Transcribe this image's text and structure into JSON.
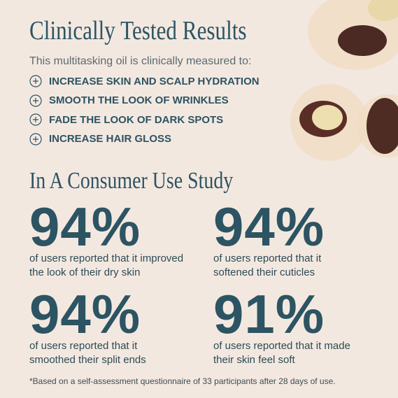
{
  "header": {
    "title": "Clinically Tested Results",
    "subtitle": "This multitasking oil is clinically measured to:"
  },
  "benefits": [
    "INCREASE SKIN AND SCALP HYDRATION",
    "SMOOTH THE LOOK OF WRINKLES",
    "FADE THE LOOK OF DARK SPOTS",
    "INCREASE HAIR GLOSS"
  ],
  "study": {
    "title": "In A Consumer Use Study",
    "stats": [
      {
        "figure": "94%",
        "lines": [
          "of users reported that it improved",
          "the look of their dry skin"
        ]
      },
      {
        "figure": "94%",
        "lines": [
          "of users reported that it",
          "softened their cuticles"
        ]
      },
      {
        "figure": "94%",
        "lines": [
          "of users reported that it",
          "smoothed their split ends"
        ]
      },
      {
        "figure": "91%",
        "lines": [
          "of users reported that it made",
          "their skin feel soft"
        ]
      }
    ]
  },
  "footnote": "*Based on a self-assessment questionnaire of 33 participants after 28 days of use."
}
